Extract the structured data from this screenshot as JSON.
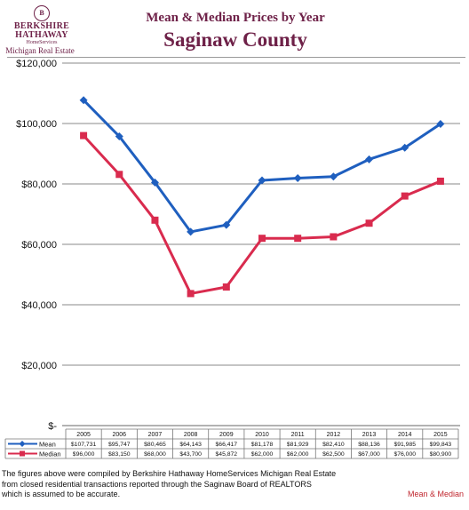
{
  "logo": {
    "seal_text": "B",
    "line1": "BERKSHIRE",
    "line2": "HATHAWAY",
    "line3": "HomeServices",
    "line4": "Michigan Real Estate"
  },
  "title": "Mean & Median Prices by Year",
  "subtitle": "Saginaw County",
  "footer": [
    "The figures above were compiled by Berkshire Hathaway HomeServices Michigan Real Estate",
    "from closed residential transactions reported through the Saginaw Board of REALTORS",
    "which is assumed to be accurate."
  ],
  "footer_tag": "Mean & Median",
  "chart_data": {
    "type": "line",
    "ylim": [
      0,
      120000
    ],
    "yticks": [
      0,
      20000,
      40000,
      60000,
      80000,
      100000,
      120000
    ],
    "ytick_labels": [
      "$-",
      "$20,000",
      "$40,000",
      "$60,000",
      "$80,000",
      "$100,000",
      "$120,000"
    ],
    "categories": [
      "2005",
      "2006",
      "2007",
      "2008",
      "2009",
      "2010",
      "2011",
      "2012",
      "2013",
      "2014",
      "2015"
    ],
    "grid": true,
    "series": [
      {
        "name": "Mean",
        "color": "#1f5fbf",
        "marker": "diamond",
        "values": [
          107731,
          95747,
          80465,
          64143,
          66417,
          81178,
          81929,
          82410,
          88136,
          91985,
          99843
        ],
        "labels": [
          "$107,731",
          "$95,747",
          "$80,465",
          "$64,143",
          "$66,417",
          "$81,178",
          "$81,929",
          "$82,410",
          "$88,136",
          "$91,985",
          "$99,843"
        ]
      },
      {
        "name": "Median",
        "color": "#d92b4e",
        "marker": "square",
        "values": [
          96000,
          83150,
          68000,
          43700,
          45872,
          62000,
          62000,
          62500,
          67000,
          76000,
          80900
        ],
        "labels": [
          "$96,000",
          "$83,150",
          "$68,000",
          "$43,700",
          "$45,872",
          "$62,000",
          "$62,000",
          "$62,500",
          "$67,000",
          "$76,000",
          "$80,900"
        ]
      }
    ]
  }
}
